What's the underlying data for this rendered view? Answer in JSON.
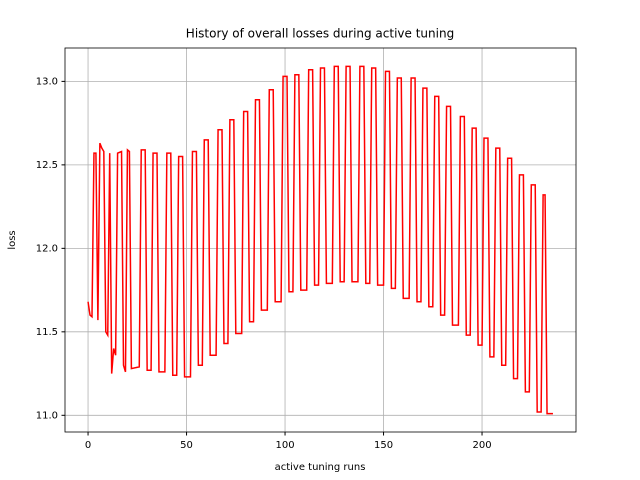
{
  "chart_data": {
    "type": "line",
    "title": "History of overall losses during active tuning",
    "xlabel": "active tuning runs",
    "ylabel": "loss",
    "x": [
      0,
      1,
      2,
      3,
      4,
      5,
      6,
      7,
      8,
      9,
      10,
      11,
      12,
      13,
      14,
      15,
      17,
      18,
      19,
      20,
      21,
      22,
      26,
      27,
      29,
      30,
      32,
      33,
      35,
      36,
      39,
      40,
      42,
      43,
      45,
      46,
      48,
      49,
      52,
      53,
      55,
      56,
      58,
      59,
      61,
      62,
      65,
      66,
      68,
      69,
      71,
      72,
      74,
      75,
      78,
      79,
      81,
      82,
      84,
      85,
      87,
      88,
      91,
      92,
      94,
      95,
      98,
      99,
      101,
      102,
      104,
      105,
      107,
      108,
      111,
      112,
      114,
      115,
      117,
      118,
      120,
      121,
      124,
      125,
      127,
      128,
      130,
      131,
      133,
      134,
      137,
      138,
      140,
      141,
      143,
      144,
      146,
      147,
      150,
      151,
      153,
      154,
      156,
      157,
      159,
      160,
      163,
      164,
      166,
      167,
      169,
      170,
      172,
      173,
      175,
      176,
      178,
      179,
      181,
      182,
      184,
      185,
      188,
      189,
      191,
      192,
      194,
      195,
      197,
      198,
      200,
      201,
      203,
      204,
      206,
      207,
      209,
      210,
      212,
      213,
      215,
      216,
      218,
      219,
      221,
      222,
      224,
      225,
      227,
      228,
      230,
      231,
      232,
      233,
      236
    ],
    "series": [
      {
        "name": "loss",
        "color": "#ff0000",
        "values": [
          11.68,
          11.6,
          11.59,
          12.57,
          12.57,
          11.57,
          12.63,
          12.6,
          12.58,
          11.5,
          11.48,
          12.57,
          11.25,
          11.4,
          11.36,
          12.57,
          12.58,
          11.3,
          11.26,
          12.59,
          12.58,
          11.28,
          11.29,
          12.59,
          12.59,
          11.27,
          11.27,
          12.57,
          12.57,
          11.26,
          11.26,
          12.57,
          12.57,
          11.24,
          11.24,
          12.55,
          12.55,
          11.23,
          11.23,
          12.58,
          12.58,
          11.3,
          11.3,
          12.65,
          12.65,
          11.36,
          11.36,
          12.71,
          12.71,
          11.43,
          11.43,
          12.77,
          12.77,
          11.49,
          11.49,
          12.82,
          12.82,
          11.56,
          11.56,
          12.89,
          12.89,
          11.63,
          11.63,
          12.95,
          12.95,
          11.68,
          11.68,
          13.03,
          13.03,
          11.74,
          11.74,
          13.04,
          13.04,
          11.75,
          11.75,
          13.07,
          13.07,
          11.78,
          11.78,
          13.08,
          13.08,
          11.79,
          11.79,
          13.09,
          13.09,
          11.8,
          11.8,
          13.09,
          13.09,
          11.8,
          11.8,
          13.09,
          13.09,
          11.79,
          11.79,
          13.08,
          13.08,
          11.78,
          11.78,
          13.06,
          13.06,
          11.76,
          11.76,
          13.02,
          13.02,
          11.7,
          11.7,
          13.02,
          13.02,
          11.68,
          11.68,
          12.96,
          12.96,
          11.65,
          11.65,
          12.91,
          12.91,
          11.6,
          11.6,
          12.85,
          12.85,
          11.54,
          11.54,
          12.79,
          12.79,
          11.48,
          11.48,
          12.72,
          12.72,
          11.42,
          11.42,
          12.66,
          12.66,
          11.35,
          11.35,
          12.6,
          12.6,
          11.3,
          11.3,
          12.54,
          12.54,
          11.22,
          11.22,
          12.44,
          12.44,
          11.14,
          11.14,
          12.38,
          12.38,
          11.02,
          11.02,
          12.32,
          12.32,
          11.01,
          11.01
        ]
      }
    ],
    "xlim": [
      -11.7,
      247.7
    ],
    "ylim": [
      10.9,
      13.2
    ],
    "xticks": [
      0,
      50,
      100,
      150,
      200
    ],
    "yticks": [
      {
        "value": 11,
        "label": "11.0"
      },
      11.5,
      {
        "value": 12,
        "label": "12.0"
      },
      12.5,
      {
        "value": 13,
        "label": "13.0"
      }
    ],
    "grid": true
  }
}
